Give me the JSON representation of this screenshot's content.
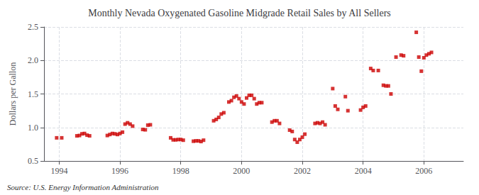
{
  "chart_data": {
    "type": "scatter",
    "title": "Monthly Nevada Oxygenated Gasoline Midgrade Retail Sales by All Sellers",
    "ylabel": "Dollars per Gallon",
    "source": "Source: U.S. Energy Information Administration",
    "color": "#cc0000",
    "marker": "square",
    "grid": true,
    "xlim": [
      1993.5,
      2007.3
    ],
    "ylim": [
      0.5,
      2.5
    ],
    "xticks": [
      1994,
      1996,
      1998,
      2000,
      2002,
      2004,
      2006
    ],
    "yticks": [
      0.5,
      {
        "value": 1.0,
        "label": "1.0"
      },
      1.5,
      {
        "value": 2.0,
        "label": "2.0"
      },
      2.5
    ],
    "x": [
      1993.917,
      1994.083,
      1994.583,
      1994.667,
      1994.75,
      1994.833,
      1994.917,
      1995.0,
      1995.583,
      1995.667,
      1995.75,
      1995.833,
      1995.917,
      1996.0,
      1996.083,
      1996.167,
      1996.25,
      1996.333,
      1996.417,
      1996.75,
      1996.833,
      1996.917,
      1997.0,
      1997.667,
      1997.75,
      1997.833,
      1997.917,
      1998.0,
      1998.083,
      1998.417,
      1998.5,
      1998.583,
      1998.667,
      1998.75,
      1999.083,
      1999.167,
      1999.25,
      1999.333,
      1999.417,
      1999.583,
      1999.667,
      1999.75,
      1999.833,
      1999.917,
      2000.0,
      2000.083,
      2000.167,
      2000.25,
      2000.333,
      2000.417,
      2000.5,
      2000.583,
      2000.667,
      2001.0,
      2001.083,
      2001.167,
      2001.25,
      2001.583,
      2001.667,
      2001.75,
      2001.833,
      2001.917,
      2002.0,
      2002.083,
      2002.417,
      2002.5,
      2002.583,
      2002.667,
      2002.75,
      2003.0,
      2003.083,
      2003.167,
      2003.417,
      2003.5,
      2003.917,
      2004.0,
      2004.083,
      2004.25,
      2004.333,
      2004.5,
      2004.667,
      2004.75,
      2004.833,
      2004.917,
      2005.083,
      2005.25,
      2005.333,
      2005.75,
      2005.833,
      2005.917,
      2006.0,
      2006.083,
      2006.167,
      2006.25
    ],
    "values": [
      0.845,
      0.845,
      0.875,
      0.88,
      0.905,
      0.91,
      0.885,
      0.875,
      0.88,
      0.895,
      0.91,
      0.905,
      0.895,
      0.91,
      0.93,
      1.05,
      1.07,
      1.05,
      1.02,
      0.97,
      0.965,
      1.035,
      1.04,
      0.845,
      0.815,
      0.815,
      0.82,
      0.82,
      0.81,
      0.795,
      0.8,
      0.8,
      0.79,
      0.81,
      1.1,
      1.12,
      1.15,
      1.2,
      1.22,
      1.38,
      1.4,
      1.45,
      1.47,
      1.43,
      1.38,
      1.35,
      1.44,
      1.48,
      1.48,
      1.43,
      1.35,
      1.37,
      1.37,
      1.08,
      1.1,
      1.1,
      1.06,
      0.96,
      0.94,
      0.82,
      0.78,
      0.82,
      0.855,
      0.9,
      1.06,
      1.07,
      1.06,
      1.08,
      1.04,
      1.58,
      1.32,
      1.27,
      1.46,
      1.25,
      1.26,
      1.3,
      1.32,
      1.88,
      1.85,
      1.85,
      1.63,
      1.62,
      1.62,
      1.5,
      2.05,
      2.08,
      2.07,
      2.42,
      2.05,
      1.84,
      2.04,
      2.08,
      2.1,
      2.12
    ]
  }
}
